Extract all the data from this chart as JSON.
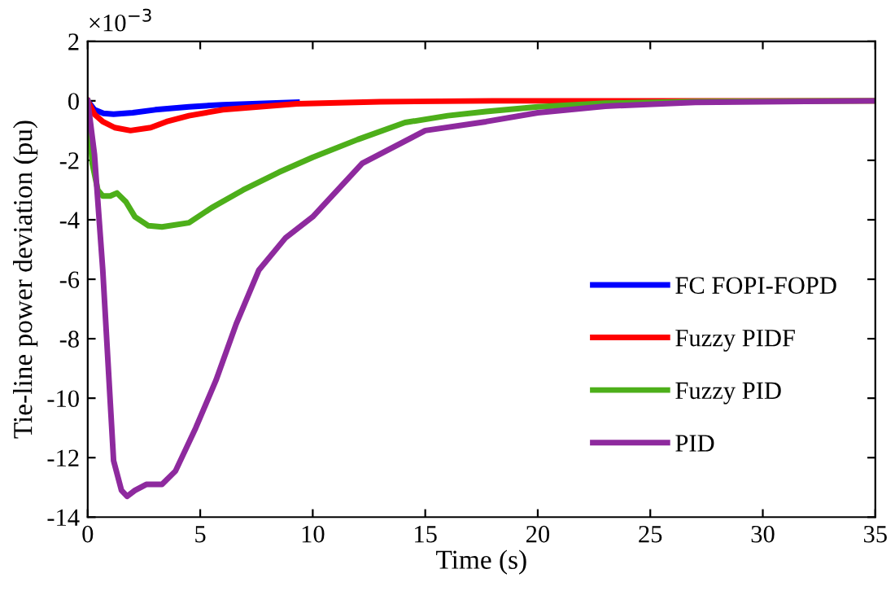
{
  "chart_data": {
    "type": "line",
    "xlabel": "Time (s)",
    "ylabel": "Tie-line power deviation (pu)",
    "annotations": [
      "×10$^{−3}$"
    ],
    "xlim": [
      0,
      35
    ],
    "ylim": [
      -14,
      2
    ],
    "xticks": [
      0,
      5,
      10,
      15,
      20,
      25,
      30,
      35
    ],
    "yticks": [
      -14,
      -12,
      -10,
      -8,
      -6,
      -4,
      -2,
      0,
      2
    ],
    "grid": false,
    "legend": "bottom right",
    "series": [
      {
        "name": "FC FOPI-FOPD",
        "color": "#0000ff",
        "x": [
          0,
          0.3,
          0.7,
          1.15,
          2,
          3,
          4.5,
          6,
          9.3
        ],
        "values": [
          0,
          -0.3,
          -0.42,
          -0.45,
          -0.4,
          -0.3,
          -0.2,
          -0.13,
          -0.05
        ]
      },
      {
        "name": "Fuzzy PIDF",
        "color": "#ff0000",
        "x": [
          0,
          0.3,
          0.67,
          1.2,
          1.9,
          2.8,
          3.5,
          4.5,
          6,
          9.3,
          13,
          18,
          25,
          35
        ],
        "values": [
          0,
          -0.45,
          -0.7,
          -0.9,
          -1.0,
          -0.9,
          -0.7,
          -0.5,
          -0.3,
          -0.1,
          -0.03,
          0,
          0,
          0
        ]
      },
      {
        "name": "Fuzzy PID",
        "color": "#4daf1a",
        "x": [
          0,
          0.2,
          0.45,
          0.67,
          1,
          1.3,
          1.7,
          2.1,
          2.7,
          3.3,
          4.5,
          5.5,
          6.9,
          8.5,
          10,
          12,
          14.1,
          16,
          17.7,
          20,
          23,
          27,
          35
        ],
        "values": [
          0,
          -2.1,
          -3.0,
          -3.2,
          -3.2,
          -3.1,
          -3.4,
          -3.9,
          -4.2,
          -4.24,
          -4.1,
          -3.6,
          -3.0,
          -2.4,
          -1.9,
          -1.3,
          -0.73,
          -0.5,
          -0.36,
          -0.2,
          -0.08,
          -0.02,
          0
        ]
      },
      {
        "name": "PID",
        "color": "#8e2a9e",
        "x": [
          0,
          0.3,
          0.67,
          1.15,
          1.5,
          1.75,
          2.1,
          2.6,
          3.3,
          3.9,
          4.8,
          5.7,
          6.6,
          7.6,
          8.8,
          10,
          12.2,
          15,
          17.7,
          20,
          23,
          27,
          35
        ],
        "values": [
          0,
          -1.8,
          -5.7,
          -12.1,
          -13.1,
          -13.3,
          -13.1,
          -12.9,
          -12.9,
          -12.45,
          -11.0,
          -9.4,
          -7.5,
          -5.7,
          -4.6,
          -3.9,
          -2.1,
          -1.0,
          -0.7,
          -0.4,
          -0.18,
          -0.05,
          0
        ]
      }
    ]
  }
}
